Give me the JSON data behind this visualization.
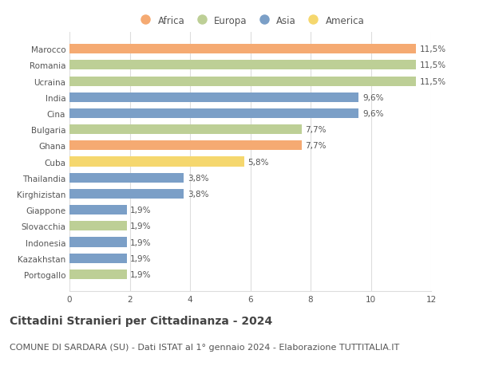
{
  "countries": [
    "Marocco",
    "Romania",
    "Ucraina",
    "India",
    "Cina",
    "Bulgaria",
    "Ghana",
    "Cuba",
    "Thailandia",
    "Kirghizistan",
    "Giappone",
    "Slovacchia",
    "Indonesia",
    "Kazakhstan",
    "Portogallo"
  ],
  "values": [
    11.5,
    11.5,
    11.5,
    9.6,
    9.6,
    7.7,
    7.7,
    5.8,
    3.8,
    3.8,
    1.9,
    1.9,
    1.9,
    1.9,
    1.9
  ],
  "labels": [
    "11,5%",
    "11,5%",
    "11,5%",
    "9,6%",
    "9,6%",
    "7,7%",
    "7,7%",
    "5,8%",
    "3,8%",
    "3,8%",
    "1,9%",
    "1,9%",
    "1,9%",
    "1,9%",
    "1,9%"
  ],
  "continents": [
    "Africa",
    "Europa",
    "Europa",
    "Asia",
    "Asia",
    "Europa",
    "Africa",
    "America",
    "Asia",
    "Asia",
    "Asia",
    "Europa",
    "Asia",
    "Asia",
    "Europa"
  ],
  "colors": {
    "Africa": "#F5AA72",
    "Europa": "#BDCF96",
    "Asia": "#7B9FC7",
    "America": "#F5D76E"
  },
  "legend_order": [
    "Africa",
    "Europa",
    "Asia",
    "America"
  ],
  "xlim": [
    0,
    12
  ],
  "xticks": [
    0,
    2,
    4,
    6,
    8,
    10,
    12
  ],
  "title": "Cittadini Stranieri per Cittadinanza - 2024",
  "subtitle": "COMUNE DI SARDARA (SU) - Dati ISTAT al 1° gennaio 2024 - Elaborazione TUTTITALIA.IT",
  "title_fontsize": 10,
  "subtitle_fontsize": 8,
  "label_fontsize": 7.5,
  "tick_fontsize": 7.5,
  "bar_height": 0.6,
  "background_color": "#ffffff",
  "grid_color": "#dddddd",
  "text_color": "#555555",
  "label_color": "#555555"
}
